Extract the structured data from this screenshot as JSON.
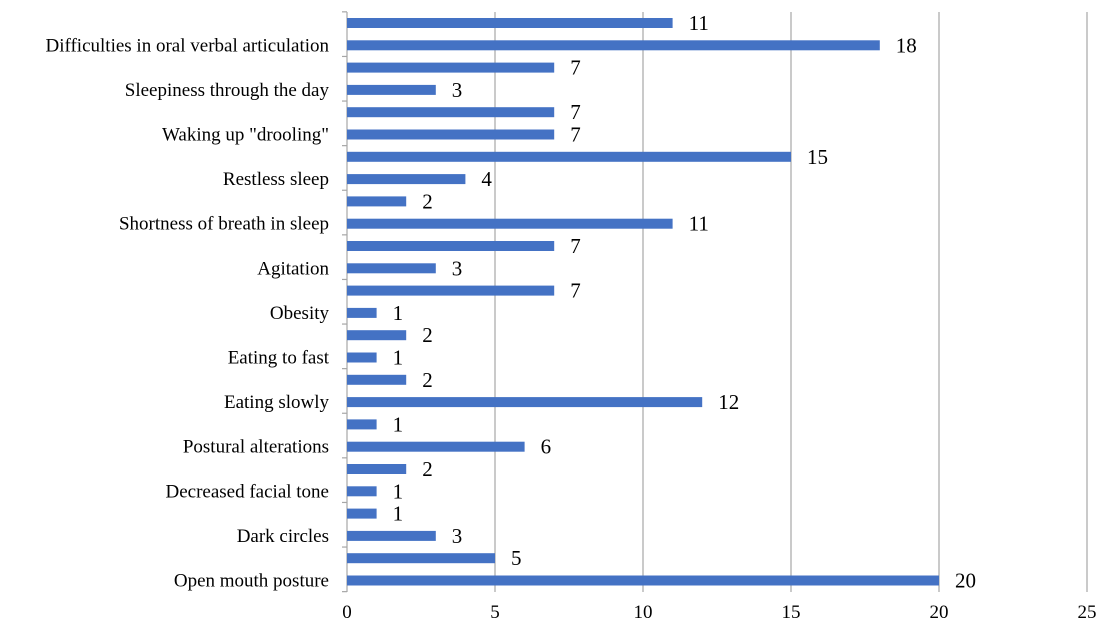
{
  "chart_data": {
    "type": "bar",
    "orientation": "horizontal",
    "bar_color": "#4472c4",
    "xlim": [
      0,
      25
    ],
    "x_ticks": [
      0,
      5,
      10,
      15,
      20,
      25
    ],
    "grid": true,
    "title": "",
    "xlabel": "",
    "ylabel": "",
    "category_labels": [
      "Difficulties in oral verbal articulation",
      "Sleepiness through the day",
      "Waking up \"drooling\"",
      "Restless sleep",
      "Shortness of breath in sleep",
      "Agitation",
      "Obesity",
      "Eating to fast",
      "Eating slowly",
      "Postural alterations",
      "Decreased facial tone",
      "Dark circles",
      "Open mouth posture"
    ],
    "bars": [
      {
        "category": "",
        "value": 11
      },
      {
        "category": "Difficulties in oral verbal articulation",
        "value": 18
      },
      {
        "category": "",
        "value": 7
      },
      {
        "category": "Sleepiness through the day",
        "value": 3
      },
      {
        "category": "",
        "value": 7
      },
      {
        "category": "Waking up \"drooling\"",
        "value": 7
      },
      {
        "category": "",
        "value": 15
      },
      {
        "category": "Restless sleep",
        "value": 4
      },
      {
        "category": "",
        "value": 2
      },
      {
        "category": "Shortness of breath in sleep",
        "value": 11
      },
      {
        "category": "",
        "value": 7
      },
      {
        "category": "Agitation",
        "value": 3
      },
      {
        "category": "",
        "value": 7
      },
      {
        "category": "Obesity",
        "value": 1
      },
      {
        "category": "",
        "value": 2
      },
      {
        "category": "Eating to fast",
        "value": 1
      },
      {
        "category": "",
        "value": 2
      },
      {
        "category": "Eating slowly",
        "value": 12
      },
      {
        "category": "",
        "value": 1
      },
      {
        "category": "Postural alterations",
        "value": 6
      },
      {
        "category": "",
        "value": 2
      },
      {
        "category": "Decreased facial tone",
        "value": 1
      },
      {
        "category": "",
        "value": 1
      },
      {
        "category": "Dark circles",
        "value": 3
      },
      {
        "category": "",
        "value": 5
      },
      {
        "category": "Open mouth posture",
        "value": 20
      }
    ]
  }
}
